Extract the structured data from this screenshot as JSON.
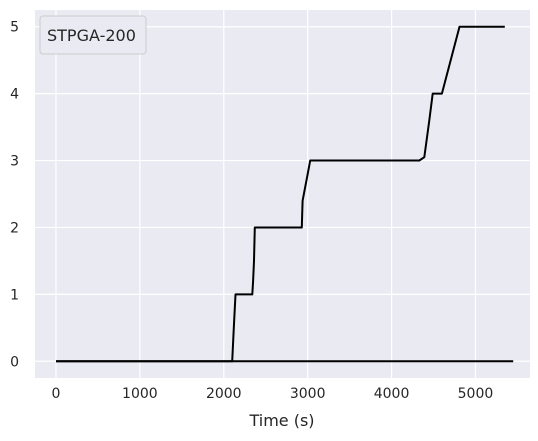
{
  "colors": {
    "plot_background": "#eaeaf2",
    "grid": "#ffffff",
    "line": "#000000",
    "legend_background": "#eaeaf2",
    "legend_border": "#cccccc"
  },
  "chart_data": {
    "type": "line",
    "title": "",
    "xlabel": "Time (s)",
    "ylabel": "",
    "xlim": [
      -250,
      5650
    ],
    "ylim": [
      -0.25,
      5.25
    ],
    "xticks": [
      0,
      1000,
      2000,
      3000,
      4000,
      5000
    ],
    "yticks": [
      0,
      1,
      2,
      3,
      4,
      5
    ],
    "xtick_labels": [
      "0",
      "1000",
      "2000",
      "3000",
      "4000",
      "5000"
    ],
    "ytick_labels": [
      "0",
      "1",
      "2",
      "3",
      "4",
      "5"
    ],
    "grid": true,
    "legend": {
      "position": "top-left",
      "entries": [
        "STPGA-200"
      ]
    },
    "series": [
      {
        "name": "STPGA-200",
        "color": "#000000",
        "x": [
          0,
          2100,
          2120,
          2140,
          2340,
          2350,
          2360,
          2370,
          2930,
          2940,
          3000,
          3030,
          4330,
          4390,
          4450,
          4490,
          4600,
          4810,
          5350
        ],
        "y": [
          0,
          0,
          0.5,
          1,
          1,
          1.2,
          1.5,
          2,
          2,
          2.4,
          2.8,
          3,
          3,
          3.05,
          3.6,
          4,
          4,
          5,
          5
        ]
      },
      {
        "name": "",
        "color": "#000000",
        "x": [
          0,
          5450
        ],
        "y": [
          0,
          0
        ]
      }
    ]
  }
}
